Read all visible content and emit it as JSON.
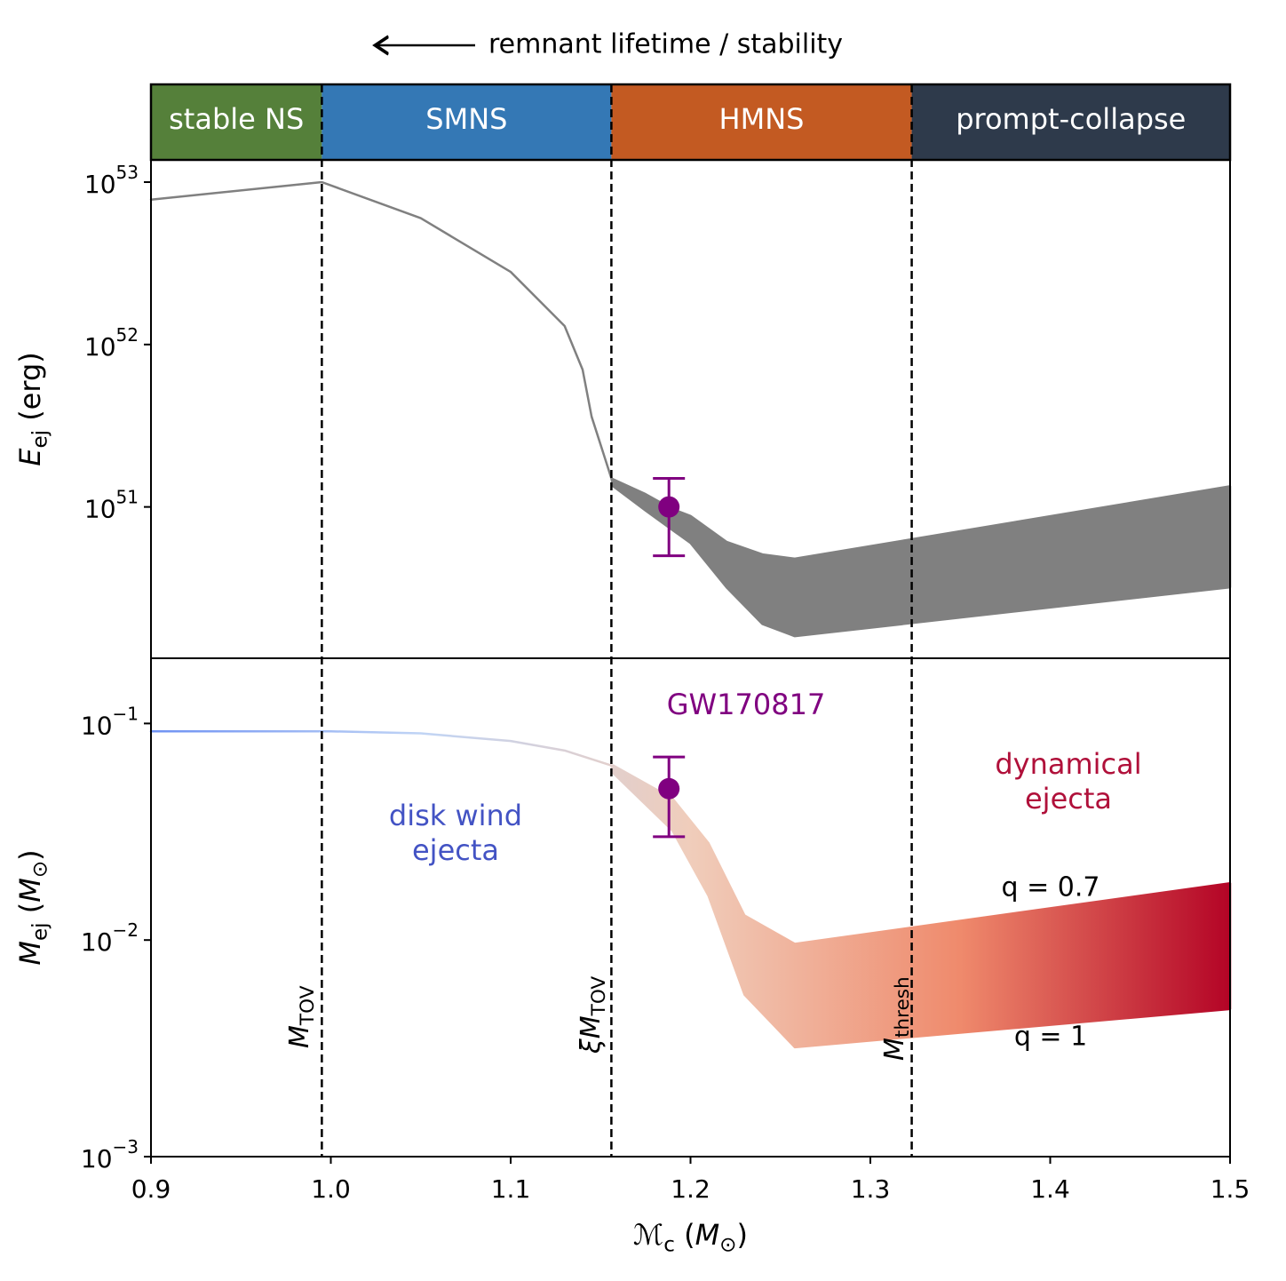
{
  "header": {
    "text": "remnant lifetime / stability"
  },
  "regions": [
    {
      "label": "stable NS",
      "from": 0.9,
      "to": 0.995,
      "color": "#55803a"
    },
    {
      "label": "SMNS",
      "from": 0.995,
      "to": 1.156,
      "color": "#3478b5"
    },
    {
      "label": "HMNS",
      "from": 1.156,
      "to": 1.323,
      "color": "#c35a22"
    },
    {
      "label": "prompt-collapse",
      "from": 1.323,
      "to": 1.5,
      "color": "#2e3a4b"
    }
  ],
  "vlines": [
    {
      "x": 0.995,
      "label": [
        {
          "text": "M",
          "style": "italic"
        },
        {
          "text": "TOV",
          "style": "sub"
        }
      ]
    },
    {
      "x": 1.156,
      "label": [
        {
          "text": "ξM",
          "style": "italic"
        },
        {
          "text": "TOV",
          "style": "sub"
        }
      ]
    },
    {
      "x": 1.323,
      "label": [
        {
          "text": "M",
          "style": "italic"
        },
        {
          "text": "thresh",
          "style": "sub"
        }
      ]
    }
  ],
  "chart_data": [
    {
      "type": "area",
      "yscale": "log",
      "xlim": [
        0.9,
        1.5
      ],
      "ylim": [
        1.17e+50,
        1.37e+53
      ],
      "yticks": [
        {
          "value": 1e+51,
          "label": "10",
          "exponent": "51"
        },
        {
          "value": 1e+52,
          "label": "10",
          "exponent": "52"
        },
        {
          "value": 1e+53,
          "label": "10",
          "exponent": "53"
        }
      ],
      "ylabel": [
        {
          "text": "E",
          "style": "italic"
        },
        {
          "text": "ej",
          "style": "sub"
        },
        {
          "text": " (erg)"
        }
      ],
      "color": "#808080",
      "band": {
        "x": [
          0.9,
          0.995,
          1.05,
          1.1,
          1.13,
          1.14,
          1.145,
          1.156,
          1.157,
          1.175,
          1.19,
          1.2,
          1.22,
          1.24,
          1.258,
          1.5
        ],
        "upper": [
          7.8e+52,
          1e+53,
          6e+52,
          2.8e+52,
          1.3e+52,
          7e+51,
          3.6e+51,
          1.5e+51,
          1.48e+51,
          1.2e+51,
          9.7e+50,
          8.8e+50,
          6.1e+50,
          5.1e+50,
          4.8e+50,
          1.34e+51
        ],
        "lower": [
          7.8e+52,
          1e+53,
          6e+52,
          2.8e+52,
          1.3e+52,
          7e+51,
          3.6e+51,
          1.5e+51,
          1.34e+51,
          9.5e+50,
          7.2e+50,
          6e+50,
          3.2e+50,
          1.9e+50,
          1.6e+50,
          3.2e+50
        ]
      },
      "point": {
        "x": 1.188,
        "y": 1e+51,
        "y_low": 5e+50,
        "y_high": 1.5e+51,
        "color": "#800080"
      }
    },
    {
      "type": "area",
      "yscale": "log",
      "xlim": [
        0.9,
        1.5
      ],
      "ylim": [
        0.001,
        0.2
      ],
      "xticks": [
        0.9,
        {
          "value": 1,
          "label": "1.0"
        },
        1.1,
        1.2,
        1.3,
        1.4,
        1.5
      ],
      "yticks": [
        {
          "value": 0.001,
          "label": "10",
          "exponent": "−3"
        },
        {
          "value": 0.01,
          "label": "10",
          "exponent": "−2"
        },
        {
          "value": 0.1,
          "label": "10",
          "exponent": "−1"
        }
      ],
      "xlabel": [
        {
          "text": "ℳ",
          "style": "italic"
        },
        {
          "text": "c",
          "style": "sub"
        },
        {
          "text": "  ("
        },
        {
          "text": "M",
          "style": "italic"
        },
        {
          "text": "⊙",
          "style": "sub"
        },
        {
          "text": ")"
        }
      ],
      "ylabel": [
        {
          "text": "M",
          "style": "italic"
        },
        {
          "text": "ej",
          "style": "sub"
        },
        {
          "text": " ("
        },
        {
          "text": "M",
          "style": "italic"
        },
        {
          "text": "⊙",
          "style": "sub"
        },
        {
          "text": ")"
        }
      ],
      "colormap": [
        "#6f92f3",
        "#c0d4f5",
        "#f0cdbb",
        "#ef8a6c",
        "#b40426"
      ],
      "band": {
        "x": [
          0.9,
          1.0,
          1.05,
          1.1,
          1.13,
          1.156,
          1.157,
          1.19,
          1.21,
          1.23,
          1.258,
          1.5
        ],
        "upper": [
          0.092,
          0.092,
          0.09,
          0.083,
          0.075,
          0.064,
          0.064,
          0.045,
          0.028,
          0.013,
          0.0096,
          0.0183
        ],
        "lower": [
          0.092,
          0.092,
          0.09,
          0.083,
          0.075,
          0.064,
          0.059,
          0.032,
          0.016,
          0.0056,
          0.0032,
          0.0048
        ]
      },
      "point": {
        "x": 1.188,
        "y": 0.05,
        "y_low": 0.03,
        "y_high": 0.07,
        "color": "#800080"
      },
      "annotations": [
        {
          "lines": [
            "GW170817"
          ],
          "color": "#800080"
        },
        {
          "lines": [
            "disk wind",
            "ejecta"
          ],
          "color": "#4353c4"
        },
        {
          "lines": [
            "dynamical",
            "ejecta"
          ],
          "color": "#b0103a"
        },
        {
          "lines": [
            "q = 0.7"
          ],
          "color": "#000000"
        },
        {
          "lines": [
            "q = 1"
          ],
          "color": "#000000"
        }
      ]
    }
  ]
}
